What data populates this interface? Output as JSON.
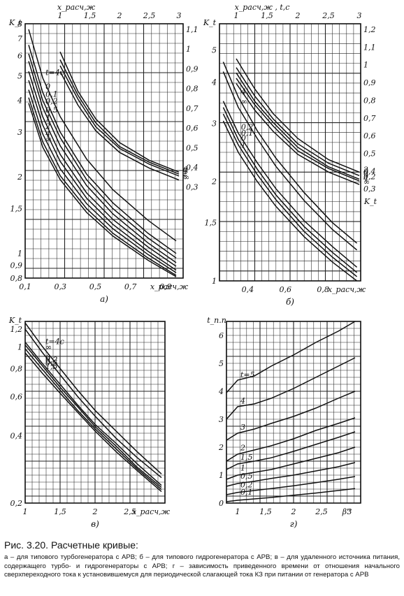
{
  "chart_data": [
    {
      "type": "line",
      "panel_label": "а)",
      "xlabel": "x_расч,ж",
      "ylabel": "K_t",
      "top_axis_label": "x_расч,ж",
      "right_axis_label": "",
      "xlim": [
        0.1,
        1.0
      ],
      "ylim": [
        0.8,
        8
      ],
      "yscale": "log",
      "grid": true,
      "x_ticks": [
        "0,1",
        "0,3",
        "0,5",
        "0,7",
        "0,9"
      ],
      "y_ticks": [
        "8",
        "7",
        "6",
        "5",
        "4",
        "3",
        "2",
        "1,5",
        "1",
        "0,9",
        "0,8"
      ],
      "top_ticks": [
        "1",
        "1,5",
        "2",
        "2,5",
        "3"
      ],
      "right_ticks": [
        "1,1",
        "1",
        "0,9",
        "0,8",
        "0,7",
        "0,6",
        "0,5",
        "0,4",
        "0,3"
      ],
      "series": [
        {
          "name": "t=4с",
          "x": [
            0.12,
            0.2,
            0.3,
            0.45,
            0.6,
            0.8,
            0.96
          ],
          "y": [
            7.6,
            4.9,
            3.45,
            2.35,
            1.78,
            1.35,
            1.12
          ]
        },
        {
          "name": "0",
          "x": [
            0.12,
            0.2,
            0.3,
            0.45,
            0.6,
            0.8,
            0.96
          ],
          "y": [
            6.6,
            4.3,
            3.0,
            2.05,
            1.58,
            1.2,
            1.0
          ]
        },
        {
          "name": "0,1",
          "x": [
            0.12,
            0.2,
            0.3,
            0.45,
            0.6,
            0.8,
            0.96
          ],
          "y": [
            6.1,
            4.0,
            2.85,
            1.95,
            1.5,
            1.15,
            0.96
          ]
        },
        {
          "name": "0,2",
          "x": [
            0.12,
            0.2,
            0.3,
            0.45,
            0.6,
            0.8,
            0.96
          ],
          "y": [
            5.7,
            3.75,
            2.65,
            1.85,
            1.43,
            1.1,
            0.92
          ]
        },
        {
          "name": "0,5",
          "x": [
            0.12,
            0.2,
            0.3,
            0.45,
            0.6,
            0.8,
            0.96
          ],
          "y": [
            5.2,
            3.45,
            2.45,
            1.73,
            1.36,
            1.06,
            0.89
          ]
        },
        {
          "name": "1",
          "x": [
            0.12,
            0.2,
            0.3,
            0.45,
            0.6,
            0.8,
            0.96
          ],
          "y": [
            4.8,
            3.2,
            2.3,
            1.65,
            1.3,
            1.02,
            0.86
          ]
        },
        {
          "name": "2",
          "x": [
            0.12,
            0.2,
            0.3,
            0.45,
            0.6,
            0.8,
            0.96
          ],
          "y": [
            4.4,
            2.95,
            2.15,
            1.57,
            1.25,
            0.99,
            0.84
          ]
        },
        {
          "name": "4",
          "x": [
            0.12,
            0.2,
            0.3,
            0.45,
            0.6,
            0.8,
            0.96
          ],
          "y": [
            4.1,
            2.75,
            2.02,
            1.5,
            1.2,
            0.96,
            0.82
          ]
        },
        {
          "name": "∞",
          "x": [
            0.12,
            0.2,
            0.3,
            0.45,
            0.6,
            0.8,
            0.96
          ],
          "y": [
            3.9,
            2.62,
            1.95,
            1.45,
            1.17,
            0.94,
            0.81
          ]
        },
        {
          "name": "0",
          "x": [
            1.0,
            1.3,
            1.6,
            2.0,
            2.5,
            3.0
          ],
          "y": [
            1.0,
            0.8,
            0.66,
            0.54,
            0.45,
            0.39
          ],
          "axis": "top_right"
        },
        {
          "name": "1",
          "x": [
            1.0,
            1.3,
            1.6,
            2.0,
            2.5,
            3.0
          ],
          "y": [
            0.96,
            0.78,
            0.64,
            0.52,
            0.44,
            0.38
          ],
          "axis": "top_right"
        },
        {
          "name": "2",
          "x": [
            1.0,
            1.3,
            1.6,
            2.0,
            2.5,
            3.0
          ],
          "y": [
            0.93,
            0.76,
            0.62,
            0.51,
            0.43,
            0.37
          ],
          "axis": "top_right"
        },
        {
          "name": "∞",
          "x": [
            1.0,
            1.3,
            1.6,
            2.0,
            2.5,
            3.0
          ],
          "y": [
            0.9,
            0.73,
            0.6,
            0.49,
            0.41,
            0.35
          ],
          "axis": "top_right"
        }
      ]
    },
    {
      "type": "line",
      "panel_label": "б)",
      "xlabel": "x_расч,ж",
      "ylabel": "K_t",
      "top_axis_label": "x_расч,ж , t,с",
      "right_axis_label": "K_t",
      "xlim": [
        0.25,
        1.0
      ],
      "ylim": [
        1,
        6
      ],
      "yscale": "log",
      "grid": true,
      "x_ticks": [
        "0,4",
        "0,6",
        "0,8"
      ],
      "y_ticks": [
        "5",
        "4",
        "3",
        "2",
        "1,5",
        "1"
      ],
      "top_ticks": [
        "1",
        "1,5",
        "2",
        "2,5",
        "3"
      ],
      "right_ticks": [
        "1,2",
        "1,1",
        "1",
        "0,9",
        "0,8",
        "0,7",
        "0,6",
        "0,5",
        "0,4",
        "0,3"
      ],
      "series": [
        {
          "name": "4",
          "x": [
            0.27,
            0.35,
            0.45,
            0.55,
            0.7,
            0.85,
            0.98
          ],
          "y": [
            4.6,
            3.6,
            2.85,
            2.35,
            1.85,
            1.5,
            1.3
          ]
        },
        {
          "name": "∞",
          "x": [
            0.27,
            0.35,
            0.45,
            0.55,
            0.7,
            0.85,
            0.98
          ],
          "y": [
            4.3,
            3.35,
            2.7,
            2.22,
            1.75,
            1.43,
            1.24
          ]
        },
        {
          "name": "0,2",
          "x": [
            0.27,
            0.35,
            0.45,
            0.55,
            0.7,
            0.85,
            0.98
          ],
          "y": [
            3.5,
            2.8,
            2.28,
            1.9,
            1.52,
            1.27,
            1.1
          ]
        },
        {
          "name": "0,1",
          "x": [
            0.27,
            0.35,
            0.45,
            0.55,
            0.7,
            0.85,
            0.98
          ],
          "y": [
            3.35,
            2.68,
            2.18,
            1.82,
            1.46,
            1.22,
            1.06
          ]
        },
        {
          "name": "0",
          "x": [
            0.27,
            0.35,
            0.45,
            0.55,
            0.7,
            0.85,
            0.98
          ],
          "y": [
            3.2,
            2.58,
            2.1,
            1.76,
            1.41,
            1.18,
            1.03
          ]
        },
        {
          "name": "1",
          "x": [
            0.27,
            0.35,
            0.45,
            0.55,
            0.7,
            0.85,
            0.98
          ],
          "y": [
            3.05,
            2.45,
            2.0,
            1.68,
            1.36,
            1.14,
            1.0
          ]
        },
        {
          "name": "2",
          "x": [
            1.0,
            1.3,
            1.6,
            2.0,
            2.5,
            3.0
          ],
          "y": [
            1.05,
            0.88,
            0.74,
            0.6,
            0.48,
            0.41
          ],
          "axis": "top_right"
        },
        {
          "name": "0",
          "x": [
            1.0,
            1.3,
            1.6,
            2.0,
            2.5,
            3.0
          ],
          "y": [
            1.0,
            0.84,
            0.71,
            0.57,
            0.46,
            0.39
          ],
          "axis": "top_right"
        },
        {
          "name": "0,2",
          "x": [
            1.0,
            1.3,
            1.6,
            2.0,
            2.5,
            3.0
          ],
          "y": [
            0.97,
            0.81,
            0.69,
            0.55,
            0.44,
            0.37
          ],
          "axis": "top_right"
        },
        {
          "name": "4",
          "x": [
            1.0,
            1.3,
            1.6,
            2.0,
            2.5,
            3.0
          ],
          "y": [
            0.94,
            0.79,
            0.67,
            0.53,
            0.43,
            0.36
          ],
          "axis": "top_right"
        },
        {
          "name": "∞",
          "x": [
            1.0,
            1.3,
            1.6,
            2.0,
            2.5,
            3.0
          ],
          "y": [
            0.91,
            0.76,
            0.64,
            0.51,
            0.41,
            0.34
          ],
          "axis": "top_right"
        }
      ]
    },
    {
      "type": "line",
      "panel_label": "в)",
      "xlabel": "x_расч,ж",
      "ylabel": "K_t",
      "xlim": [
        1,
        3
      ],
      "ylim": [
        0.2,
        1.3
      ],
      "yscale": "log",
      "grid": true,
      "x_ticks": [
        "1",
        "1,5",
        "2",
        "2,5"
      ],
      "y_ticks": [
        "1,2",
        "1",
        "0,8",
        "0,6",
        "0,4",
        "0,2"
      ],
      "series": [
        {
          "name": "t=4с",
          "x": [
            1.0,
            1.25,
            1.5,
            1.75,
            2.0,
            2.3,
            2.6,
            2.95
          ],
          "y": [
            1.28,
            1.0,
            0.8,
            0.64,
            0.52,
            0.42,
            0.34,
            0.27
          ]
        },
        {
          "name": "∞",
          "x": [
            1.0,
            1.25,
            1.5,
            1.75,
            2.0,
            2.3,
            2.6,
            2.95
          ],
          "y": [
            1.2,
            0.94,
            0.75,
            0.6,
            0.49,
            0.39,
            0.32,
            0.26
          ]
        },
        {
          "name": "0",
          "x": [
            1.0,
            1.25,
            1.5,
            1.75,
            2.0,
            2.3,
            2.6,
            2.95
          ],
          "y": [
            1.05,
            0.84,
            0.68,
            0.55,
            0.45,
            0.37,
            0.3,
            0.24
          ]
        },
        {
          "name": "0,2",
          "x": [
            1.0,
            1.25,
            1.5,
            1.75,
            2.0,
            2.3,
            2.6,
            2.95
          ],
          "y": [
            1.02,
            0.82,
            0.66,
            0.54,
            0.44,
            0.36,
            0.29,
            0.235
          ]
        },
        {
          "name": "0,5",
          "x": [
            1.0,
            1.25,
            1.5,
            1.75,
            2.0,
            2.3,
            2.6,
            2.95
          ],
          "y": [
            0.98,
            0.79,
            0.64,
            0.52,
            0.43,
            0.35,
            0.285,
            0.23
          ]
        },
        {
          "name": "1,5",
          "x": [
            1.0,
            1.25,
            1.5,
            1.75,
            2.0,
            2.3,
            2.6,
            2.95
          ],
          "y": [
            0.94,
            0.76,
            0.62,
            0.51,
            0.42,
            0.34,
            0.28,
            0.225
          ]
        }
      ]
    },
    {
      "type": "line",
      "panel_label": "г)",
      "xlabel": "β''",
      "ylabel": "t_п.п",
      "xlim": [
        0.8,
        3.2
      ],
      "ylim": [
        0,
        6.5
      ],
      "grid": true,
      "x_ticks": [
        "1",
        "1,5",
        "2",
        "2,5",
        "3"
      ],
      "y_ticks": [
        "0",
        "1",
        "2",
        "3",
        "4",
        "5",
        "6"
      ],
      "series": [
        {
          "name": "t=5",
          "x": [
            0.8,
            1.0,
            1.3,
            1.6,
            2.0,
            2.4,
            2.8,
            3.1
          ],
          "y": [
            3.95,
            4.4,
            4.55,
            4.9,
            5.3,
            5.75,
            6.15,
            6.5
          ]
        },
        {
          "name": "4",
          "x": [
            0.8,
            1.0,
            1.3,
            1.6,
            2.0,
            2.4,
            2.8,
            3.1
          ],
          "y": [
            3.0,
            3.45,
            3.55,
            3.75,
            4.1,
            4.5,
            4.9,
            5.2
          ]
        },
        {
          "name": "3",
          "x": [
            0.8,
            1.0,
            1.3,
            1.6,
            2.0,
            2.4,
            2.8,
            3.1
          ],
          "y": [
            2.25,
            2.5,
            2.65,
            2.85,
            3.1,
            3.4,
            3.75,
            4.0
          ]
        },
        {
          "name": "2",
          "x": [
            0.8,
            1.0,
            1.3,
            1.6,
            2.0,
            2.4,
            2.8,
            3.1
          ],
          "y": [
            1.5,
            1.75,
            1.9,
            2.05,
            2.3,
            2.6,
            2.85,
            3.05
          ]
        },
        {
          "name": "1,5",
          "x": [
            0.8,
            1.0,
            1.3,
            1.6,
            2.0,
            2.4,
            2.8,
            3.1
          ],
          "y": [
            1.2,
            1.4,
            1.5,
            1.62,
            1.85,
            2.1,
            2.35,
            2.55
          ]
        },
        {
          "name": "1",
          "x": [
            0.8,
            1.0,
            1.3,
            1.6,
            2.0,
            2.4,
            2.8,
            3.1
          ],
          "y": [
            0.85,
            1.0,
            1.1,
            1.2,
            1.4,
            1.6,
            1.8,
            2.0
          ]
        },
        {
          "name": "0,5",
          "x": [
            0.8,
            1.0,
            1.3,
            1.6,
            2.0,
            2.4,
            2.8,
            3.1
          ],
          "y": [
            0.6,
            0.7,
            0.78,
            0.88,
            1.0,
            1.15,
            1.3,
            1.45
          ]
        },
        {
          "name": "0,2",
          "x": [
            0.8,
            1.0,
            1.3,
            1.6,
            2.0,
            2.4,
            2.8,
            3.1
          ],
          "y": [
            0.3,
            0.38,
            0.45,
            0.52,
            0.62,
            0.73,
            0.85,
            0.95
          ]
        },
        {
          "name": "0,1",
          "x": [
            0.8,
            1.0,
            1.3,
            1.6,
            2.0,
            2.4,
            2.8,
            3.1
          ],
          "y": [
            0.05,
            0.1,
            0.15,
            0.2,
            0.28,
            0.36,
            0.45,
            0.52
          ]
        }
      ]
    }
  ],
  "caption": {
    "title": "Рис. 3.20. Расчетные кривые:",
    "body": "а – для типового турбогенератора с АРВ; б – для типового гидрогенератора с АРВ; в – для удаленного источника питания, содержащего турбо- и гидрогенераторы с АРВ; г – зависимость приведенного времени от отношения начального сверхпереходного тока к установившемуся для периодической слагающей тока КЗ при питании от генератора с АРВ"
  }
}
